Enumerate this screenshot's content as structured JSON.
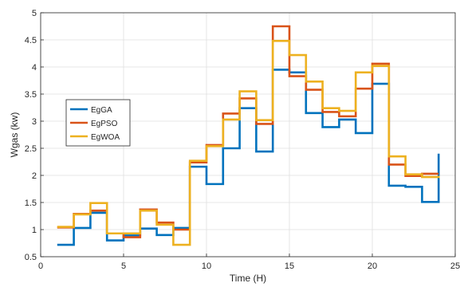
{
  "chart_data": {
    "type": "line",
    "step": true,
    "xlabel": "Time (H)",
    "ylabel": "Wgas (kw)",
    "xlim": [
      0,
      25
    ],
    "ylim": [
      0.5,
      5
    ],
    "xticks": [
      0,
      5,
      10,
      15,
      20,
      25
    ],
    "yticks": [
      0.5,
      1,
      1.5,
      2,
      2.5,
      3,
      3.5,
      4,
      4.5,
      5
    ],
    "xtick_labels": [
      "0",
      "5",
      "10",
      "15",
      "20",
      "25"
    ],
    "ytick_labels": [
      "0.5",
      "1",
      "1.5",
      "2",
      "2.5",
      "3",
      "3.5",
      "4",
      "4.5",
      "5"
    ],
    "grid": true,
    "legend_position": "left-middle",
    "x": [
      1,
      2,
      3,
      4,
      5,
      6,
      7,
      8,
      9,
      10,
      11,
      12,
      13,
      14,
      15,
      16,
      17,
      18,
      19,
      20,
      21,
      22,
      23,
      24
    ],
    "series": [
      {
        "name": "EgGA",
        "color": "#0072BD",
        "values": [
          0.72,
          1.03,
          1.31,
          0.8,
          0.89,
          1.02,
          0.9,
          1.03,
          2.16,
          1.84,
          2.5,
          3.24,
          2.44,
          3.95,
          3.9,
          3.15,
          2.89,
          3.03,
          2.78,
          3.69,
          1.81,
          1.79,
          1.51,
          2.4
        ]
      },
      {
        "name": "EgPSO",
        "color": "#D95319",
        "values": [
          1.04,
          1.29,
          1.35,
          0.93,
          0.86,
          1.37,
          1.13,
          1.0,
          2.24,
          2.56,
          3.14,
          3.42,
          2.95,
          4.75,
          3.83,
          3.58,
          3.17,
          3.09,
          3.6,
          4.06,
          2.2,
          1.99,
          2.03,
          2.03
        ]
      },
      {
        "name": "EgWOA",
        "color": "#EDB120",
        "values": [
          1.05,
          1.28,
          1.49,
          0.93,
          0.93,
          1.35,
          1.09,
          0.72,
          2.27,
          2.54,
          3.03,
          3.55,
          3.02,
          4.48,
          4.22,
          3.73,
          3.24,
          3.19,
          3.9,
          4.02,
          2.35,
          2.02,
          1.97,
          1.99
        ]
      }
    ]
  }
}
